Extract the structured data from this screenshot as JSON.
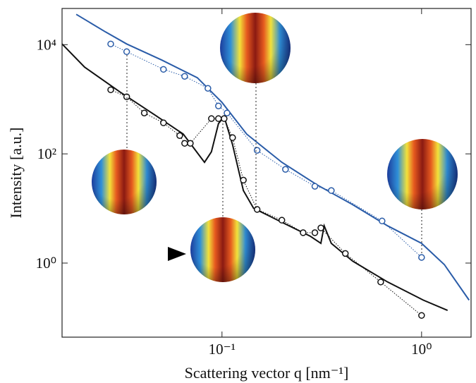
{
  "chart_data": {
    "type": "line",
    "xlabel": "Scattering vector q [nm⁻¹]",
    "ylabel": "Intensity [a.u.]",
    "log_x": true,
    "log_y": true,
    "xlim": [
      0.0158,
      1.77
    ],
    "ylim": [
      0.044,
      46000
    ],
    "xticks": [
      {
        "value": 0.1,
        "label": "10⁻¹"
      },
      {
        "value": 1,
        "label": "10⁰"
      }
    ],
    "yticks": [
      {
        "value": 1,
        "label": "10⁰"
      },
      {
        "value": 100,
        "label": "10²"
      },
      {
        "value": 10000,
        "label": "10⁴"
      }
    ],
    "series": [
      {
        "mode": "line",
        "color": "#2a5ca8",
        "x": [
          0.0186,
          0.0261,
          0.0333,
          0.0501,
          0.0752,
          0.1,
          0.133,
          0.1995,
          0.3,
          0.451,
          0.676,
          1,
          1.3,
          1.73
        ],
        "values": [
          35900,
          17100,
          10300,
          5200,
          2480,
          875,
          230,
          70,
          27,
          11.8,
          4.8,
          2.3,
          0.94,
          0.21
        ]
      },
      {
        "mode": "line",
        "color": "#111111",
        "x": [
          0.0158,
          0.0205,
          0.0308,
          0.0462,
          0.064,
          0.0817,
          0.0885,
          0.096,
          0.1025,
          0.113,
          0.128,
          0.144,
          0.1995,
          0.277,
          0.313,
          0.325,
          0.353,
          0.451,
          0.676,
          1.02,
          1.35
        ],
        "values": [
          10300,
          3870,
          1365,
          513,
          230,
          70,
          109,
          359,
          483,
          147,
          21.3,
          10.1,
          5.6,
          3.1,
          2.3,
          4.8,
          2.3,
          1.09,
          0.45,
          0.21,
          0.136
        ]
      },
      {
        "mode": "markers",
        "color": "#2a5ca8",
        "x": [
          0.0277,
          0.0333,
          0.0509,
          0.065,
          0.085,
          0.096,
          0.106,
          0.15,
          0.208,
          0.292,
          0.353,
          0.634,
          1
        ],
        "values": [
          10300,
          7430,
          3530,
          2630,
          1585,
          754,
          560,
          116,
          52,
          25.5,
          21.3,
          5.9,
          1.27
        ]
      },
      {
        "mode": "markers",
        "color": "#111111",
        "x": [
          0.0277,
          0.0333,
          0.0408,
          0.0509,
          0.0614,
          0.065,
          0.0694,
          0.0885,
          0.096,
          0.1025,
          0.113,
          0.128,
          0.15,
          0.1995,
          0.255,
          0.292,
          0.313,
          0.415,
          0.624,
          1
        ],
        "values": [
          1490,
          1110,
          560,
          370,
          216,
          156,
          156,
          442,
          442,
          442,
          198,
          33,
          9.6,
          6.1,
          3.6,
          3.6,
          4.4,
          1.5,
          0.45,
          0.11
        ]
      }
    ]
  }
}
